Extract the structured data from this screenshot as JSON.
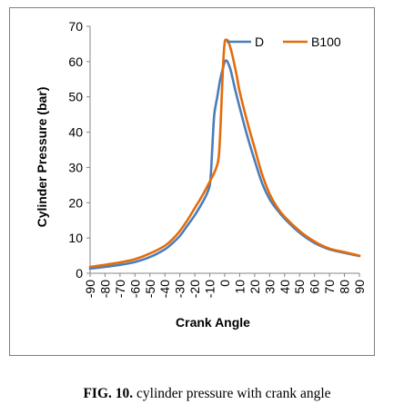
{
  "caption": {
    "label": "FIG. 10.",
    "text": " cylinder pressure with crank angle"
  },
  "chart_data": {
    "type": "line",
    "xlabel": "Crank Angle",
    "ylabel": "Cylinder Pressure (bar)",
    "xlim": [
      -90,
      90
    ],
    "ylim": [
      0,
      70
    ],
    "x_ticks": [
      -90,
      -80,
      -70,
      -60,
      -50,
      -40,
      -30,
      -20,
      -10,
      0,
      10,
      20,
      30,
      40,
      50,
      60,
      70,
      80,
      90
    ],
    "y_ticks": [
      0,
      10,
      20,
      30,
      40,
      50,
      60,
      70
    ],
    "grid": false,
    "legend_position": "top-right",
    "series": [
      {
        "name": "D",
        "color": "#4a7ebb",
        "points": [
          [
            -90,
            1.3
          ],
          [
            -80,
            1.8
          ],
          [
            -70,
            2.4
          ],
          [
            -60,
            3.2
          ],
          [
            -50,
            4.6
          ],
          [
            -40,
            6.8
          ],
          [
            -35,
            8.5
          ],
          [
            -30,
            10.6
          ],
          [
            -25,
            13.5
          ],
          [
            -20,
            16.5
          ],
          [
            -15,
            20
          ],
          [
            -12,
            22.5
          ],
          [
            -10,
            25
          ],
          [
            -9,
            30
          ],
          [
            -8,
            38
          ],
          [
            -7,
            45
          ],
          [
            -5,
            50
          ],
          [
            -3,
            55
          ],
          [
            -1,
            58.5
          ],
          [
            0,
            60
          ],
          [
            1,
            60.3
          ],
          [
            2,
            59.8
          ],
          [
            4,
            57.5
          ],
          [
            7,
            52
          ],
          [
            10,
            47
          ],
          [
            15,
            39
          ],
          [
            20,
            32
          ],
          [
            25,
            25.5
          ],
          [
            30,
            21
          ],
          [
            35,
            18
          ],
          [
            40,
            15.5
          ],
          [
            50,
            11.5
          ],
          [
            60,
            8.6
          ],
          [
            70,
            6.8
          ],
          [
            80,
            5.8
          ],
          [
            90,
            4.9
          ]
        ]
      },
      {
        "name": "B100",
        "color": "#e46c0a",
        "points": [
          [
            -90,
            1.8
          ],
          [
            -80,
            2.4
          ],
          [
            -70,
            3.1
          ],
          [
            -60,
            4
          ],
          [
            -50,
            5.6
          ],
          [
            -40,
            7.8
          ],
          [
            -35,
            9.6
          ],
          [
            -30,
            12
          ],
          [
            -25,
            15
          ],
          [
            -20,
            18.5
          ],
          [
            -15,
            22
          ],
          [
            -10,
            26
          ],
          [
            -6,
            29.5
          ],
          [
            -4,
            33
          ],
          [
            -3,
            40
          ],
          [
            -2,
            50
          ],
          [
            -1,
            60
          ],
          [
            0,
            65.5
          ],
          [
            1,
            66.2
          ],
          [
            2,
            66
          ],
          [
            3,
            65
          ],
          [
            5,
            62
          ],
          [
            8,
            56
          ],
          [
            10,
            51.5
          ],
          [
            15,
            43
          ],
          [
            20,
            35.5
          ],
          [
            25,
            28
          ],
          [
            30,
            22.5
          ],
          [
            35,
            18.7
          ],
          [
            40,
            16
          ],
          [
            50,
            12
          ],
          [
            60,
            9
          ],
          [
            70,
            7
          ],
          [
            80,
            6
          ],
          [
            90,
            5
          ]
        ]
      }
    ]
  }
}
